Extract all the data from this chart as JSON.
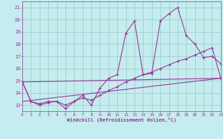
{
  "xlabel": "Windchill (Refroidissement éolien,°C)",
  "bg_color": "#c5ecee",
  "grid_color": "#9dcece",
  "line_color": "#993399",
  "xlim": [
    0,
    23
  ],
  "ylim": [
    12.5,
    21.5
  ],
  "yticks": [
    13,
    14,
    15,
    16,
    17,
    18,
    19,
    20,
    21
  ],
  "xticks": [
    0,
    1,
    2,
    3,
    4,
    5,
    6,
    7,
    8,
    9,
    10,
    11,
    12,
    13,
    14,
    15,
    16,
    17,
    18,
    19,
    20,
    21,
    22,
    23
  ],
  "line1_x": [
    0,
    1,
    2,
    3,
    4,
    5,
    6,
    7,
    8,
    9,
    10,
    11,
    12,
    13,
    14,
    15,
    16,
    17,
    18,
    19,
    20,
    21,
    22,
    23
  ],
  "line1_y": [
    14.9,
    13.3,
    13.0,
    13.2,
    13.3,
    12.7,
    13.3,
    13.8,
    13.0,
    14.4,
    15.2,
    15.5,
    18.9,
    19.9,
    15.5,
    15.6,
    19.9,
    20.5,
    21.0,
    18.7,
    18.0,
    16.9,
    17.0,
    16.4
  ],
  "line2_x": [
    0,
    1,
    2,
    3,
    4,
    5,
    6,
    7,
    8,
    9,
    10,
    11,
    12,
    13,
    14,
    15,
    16,
    17,
    18,
    19,
    20,
    21,
    22,
    23
  ],
  "line2_y": [
    14.9,
    13.3,
    13.1,
    13.3,
    13.3,
    13.0,
    13.3,
    13.6,
    13.4,
    13.8,
    14.2,
    14.5,
    14.9,
    15.2,
    15.5,
    15.7,
    16.0,
    16.3,
    16.6,
    16.8,
    17.1,
    17.4,
    17.7,
    15.2
  ],
  "line3_x": [
    0,
    23
  ],
  "line3_y": [
    13.3,
    15.2
  ],
  "line4_x": [
    0,
    23
  ],
  "line4_y": [
    14.9,
    15.2
  ]
}
